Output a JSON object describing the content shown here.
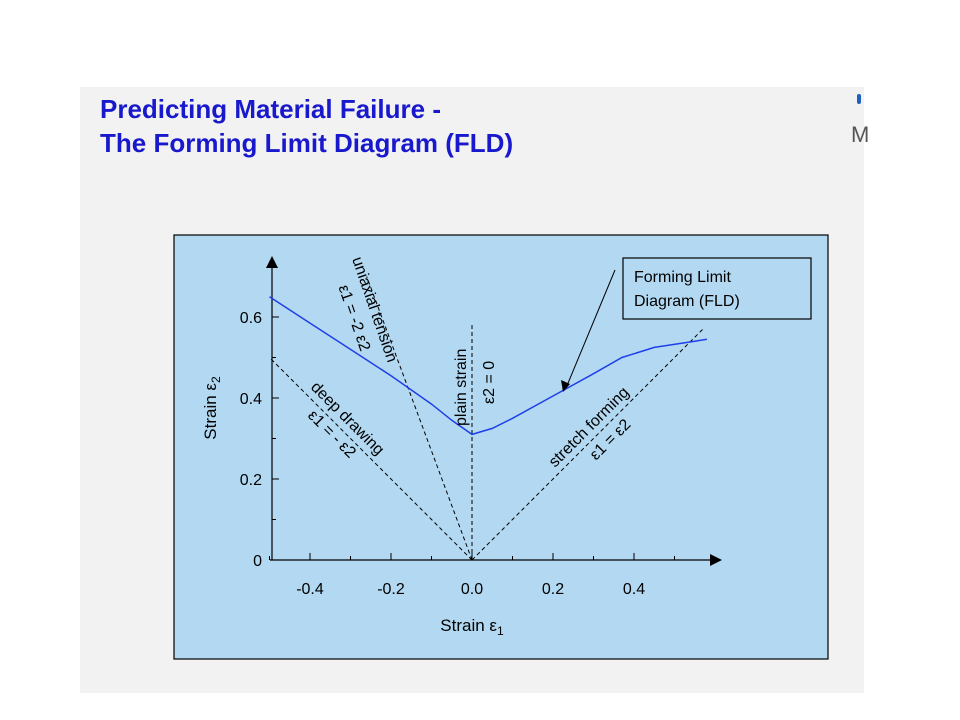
{
  "slide": {
    "title_line1": "Predicting Material Failure -",
    "title_line2": "The Forming Limit Diagram (FLD)",
    "edge_text": "M"
  },
  "colors": {
    "panel": "#b3d9f2",
    "curve": "#1f3fe8",
    "title": "#1818cc",
    "slide_bg": "#f2f2f2"
  },
  "chart_data": {
    "type": "line",
    "xlabel": "Strain ε1",
    "ylabel": "Strain ε2",
    "xlim": [
      -0.5,
      0.6
    ],
    "ylim": [
      0,
      0.7
    ],
    "x_ticks": [
      "-0.4",
      "-0.2",
      "0.0",
      "0.2",
      "0.4"
    ],
    "y_ticks": [
      "0",
      "0.2",
      "0.4",
      "0.6"
    ],
    "grid": false,
    "series": [
      {
        "name": "Forming Limit Diagram (FLD)",
        "style": "solid",
        "x": [
          -0.5,
          -0.4,
          -0.3,
          -0.2,
          -0.1,
          -0.05,
          0.0,
          0.05,
          0.1,
          0.2,
          0.3,
          0.37,
          0.45,
          0.55,
          0.58
        ],
        "y": [
          0.65,
          0.585,
          0.52,
          0.455,
          0.385,
          0.345,
          0.31,
          0.325,
          0.35,
          0.405,
          0.46,
          0.5,
          0.525,
          0.54,
          0.545
        ]
      }
    ],
    "reference_lines": [
      {
        "x": [
          0.0,
          -0.5
        ],
        "y": [
          0.0,
          0.5
        ]
      },
      {
        "x": [
          0.0,
          -0.26
        ],
        "y": [
          0.0,
          0.7
        ]
      },
      {
        "x": [
          0.0,
          0.0
        ],
        "y": [
          0.0,
          0.58
        ]
      },
      {
        "x": [
          0.0,
          0.57
        ],
        "y": [
          0.0,
          0.57
        ]
      }
    ],
    "legend": {
      "line1": "Forming Limit",
      "line2": "Diagram (FLD)",
      "position": "top-right"
    },
    "annotations": {
      "uniaxial_title": "uniaxial tension",
      "uniaxial_eq": "ε1 = -2 ε2",
      "deep_title": "deep drawing",
      "deep_eq": "ε1 = - ε2",
      "plain_title": "plain strain",
      "plain_eq": "ε2 = 0",
      "stretch_title": "stretch forming",
      "stretch_eq": "ε1 = ε2"
    }
  }
}
